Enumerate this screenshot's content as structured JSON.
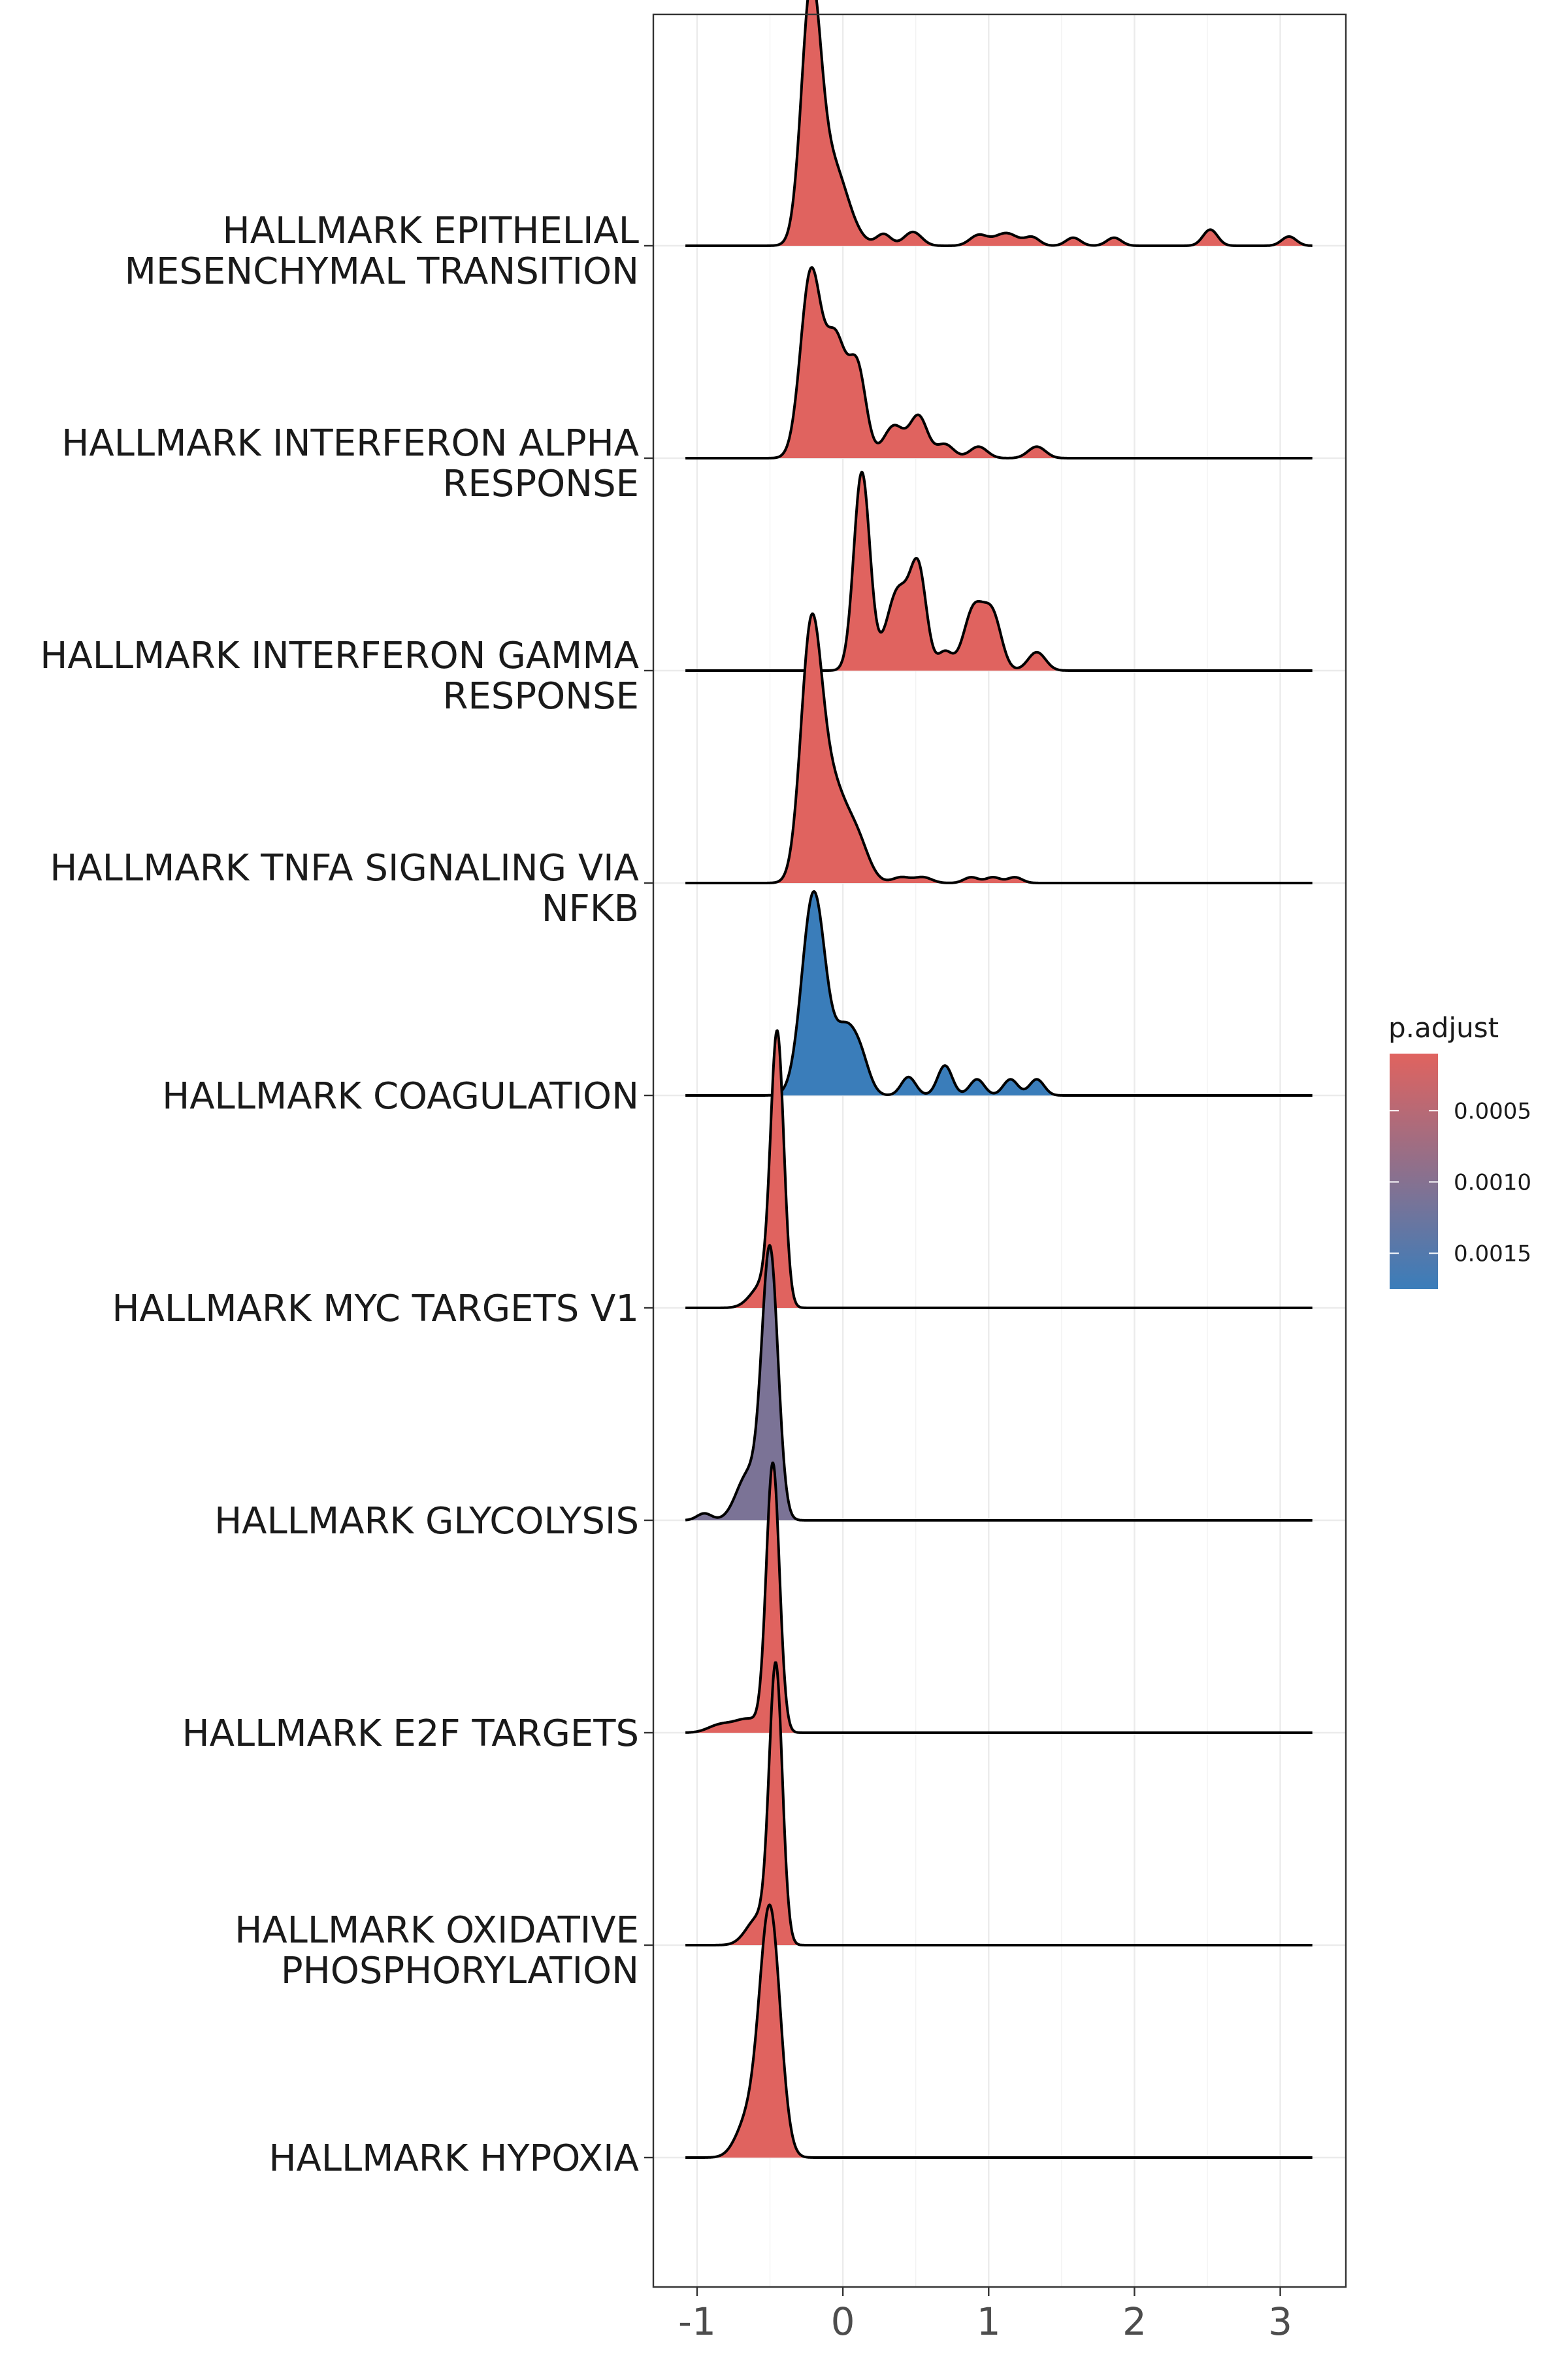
{
  "chart_data": {
    "type": "ridgeline",
    "xlim": [
      -1.3,
      3.45
    ],
    "x_ticks": [
      -1,
      0,
      1,
      2,
      3
    ],
    "x_tick_labels": [
      "-1",
      "0",
      "1",
      "2",
      "3"
    ],
    "grid": true,
    "legend": {
      "title": "p.adjust",
      "position": "right",
      "color_low": "#E0635F",
      "color_high": "#3A7DBA",
      "domain": [
        0.0001,
        0.00175
      ],
      "ticks": [
        0.0005,
        0.001,
        0.0015
      ],
      "tick_labels": [
        "0.0005",
        "0.0010",
        "0.0015"
      ]
    },
    "series": [
      {
        "name": "HALLMARK EPITHELIAL MESENCHYMAL TRANSITION",
        "label_lines": [
          "HALLMARK EPITHELIAL",
          "MESENCHYMAL TRANSITION"
        ],
        "p_adjust": 0.0001,
        "x_range": [
          -1.08,
          3.22
        ],
        "peaks": [
          {
            "x": -0.22,
            "h": 1.0,
            "w": 0.065
          },
          {
            "x": -0.08,
            "h": 0.36,
            "w": 0.11
          },
          {
            "x": 0.28,
            "h": 0.05,
            "w": 0.05
          },
          {
            "x": 0.48,
            "h": 0.06,
            "w": 0.06
          },
          {
            "x": 0.93,
            "h": 0.045,
            "w": 0.06
          },
          {
            "x": 1.12,
            "h": 0.055,
            "w": 0.08
          },
          {
            "x": 1.3,
            "h": 0.035,
            "w": 0.05
          },
          {
            "x": 1.58,
            "h": 0.035,
            "w": 0.05
          },
          {
            "x": 1.86,
            "h": 0.035,
            "w": 0.05
          },
          {
            "x": 2.52,
            "h": 0.07,
            "w": 0.05
          },
          {
            "x": 3.06,
            "h": 0.04,
            "w": 0.05
          }
        ]
      },
      {
        "name": "HALLMARK INTERFERON ALPHA RESPONSE",
        "label_lines": [
          "HALLMARK INTERFERON ALPHA",
          "RESPONSE"
        ],
        "p_adjust": 0.0001,
        "x_range": [
          -1.08,
          3.22
        ],
        "peaks": [
          {
            "x": -0.22,
            "h": 0.8,
            "w": 0.07
          },
          {
            "x": -0.05,
            "h": 0.5,
            "w": 0.07
          },
          {
            "x": 0.1,
            "h": 0.38,
            "w": 0.06
          },
          {
            "x": 0.35,
            "h": 0.14,
            "w": 0.07
          },
          {
            "x": 0.52,
            "h": 0.18,
            "w": 0.06
          },
          {
            "x": 0.7,
            "h": 0.06,
            "w": 0.06
          },
          {
            "x": 0.93,
            "h": 0.05,
            "w": 0.06
          },
          {
            "x": 1.33,
            "h": 0.05,
            "w": 0.06
          }
        ]
      },
      {
        "name": "HALLMARK INTERFERON GAMMA RESPONSE",
        "label_lines": [
          "HALLMARK INTERFERON GAMMA",
          "RESPONSE"
        ],
        "p_adjust": 0.0001,
        "x_range": [
          -1.08,
          3.22
        ],
        "peaks": [
          {
            "x": 0.13,
            "h": 0.86,
            "w": 0.055
          },
          {
            "x": 0.38,
            "h": 0.35,
            "w": 0.08
          },
          {
            "x": 0.52,
            "h": 0.4,
            "w": 0.055
          },
          {
            "x": 0.7,
            "h": 0.08,
            "w": 0.05
          },
          {
            "x": 0.9,
            "h": 0.27,
            "w": 0.07
          },
          {
            "x": 1.03,
            "h": 0.22,
            "w": 0.06
          },
          {
            "x": 1.33,
            "h": 0.08,
            "w": 0.06
          }
        ]
      },
      {
        "name": "HALLMARK TNFA SIGNALING VIA NFKB",
        "label_lines": [
          "HALLMARK TNFA SIGNALING VIA",
          "NFKB"
        ],
        "p_adjust": 0.0001,
        "x_range": [
          -1.08,
          3.22
        ],
        "peaks": [
          {
            "x": -0.22,
            "h": 1.0,
            "w": 0.07
          },
          {
            "x": -0.08,
            "h": 0.42,
            "w": 0.1
          },
          {
            "x": 0.1,
            "h": 0.16,
            "w": 0.08
          },
          {
            "x": 0.4,
            "h": 0.025,
            "w": 0.06
          },
          {
            "x": 0.55,
            "h": 0.025,
            "w": 0.06
          },
          {
            "x": 0.88,
            "h": 0.025,
            "w": 0.05
          },
          {
            "x": 1.03,
            "h": 0.025,
            "w": 0.05
          },
          {
            "x": 1.18,
            "h": 0.025,
            "w": 0.05
          }
        ]
      },
      {
        "name": "HALLMARK COAGULATION",
        "label_lines": [
          "HALLMARK COAGULATION"
        ],
        "p_adjust": 0.00175,
        "x_range": [
          -1.08,
          3.22
        ],
        "peaks": [
          {
            "x": -0.2,
            "h": 0.88,
            "w": 0.08
          },
          {
            "x": 0.02,
            "h": 0.28,
            "w": 0.08
          },
          {
            "x": 0.13,
            "h": 0.1,
            "w": 0.06
          },
          {
            "x": 0.45,
            "h": 0.08,
            "w": 0.05
          },
          {
            "x": 0.7,
            "h": 0.13,
            "w": 0.05
          },
          {
            "x": 0.92,
            "h": 0.07,
            "w": 0.05
          },
          {
            "x": 1.15,
            "h": 0.07,
            "w": 0.05
          },
          {
            "x": 1.33,
            "h": 0.07,
            "w": 0.05
          }
        ]
      },
      {
        "name": "HALLMARK MYC TARGETS V1",
        "label_lines": [
          "HALLMARK MYC TARGETS V1"
        ],
        "p_adjust": 0.0001,
        "x_range": [
          -1.08,
          3.22
        ],
        "peaks": [
          {
            "x": -0.45,
            "h": 1.16,
            "w": 0.045
          },
          {
            "x": -0.55,
            "h": 0.1,
            "w": 0.08
          }
        ]
      },
      {
        "name": "HALLMARK GLYCOLYSIS",
        "label_lines": [
          "HALLMARK GLYCOLYSIS"
        ],
        "p_adjust": 0.0011,
        "x_range": [
          -1.08,
          3.22
        ],
        "peaks": [
          {
            "x": -0.5,
            "h": 1.16,
            "w": 0.055
          },
          {
            "x": -0.65,
            "h": 0.2,
            "w": 0.08
          },
          {
            "x": -0.95,
            "h": 0.03,
            "w": 0.05
          }
        ]
      },
      {
        "name": "HALLMARK E2F TARGETS",
        "label_lines": [
          "HALLMARK E2F TARGETS"
        ],
        "p_adjust": 0.0001,
        "x_range": [
          -1.08,
          3.22
        ],
        "peaks": [
          {
            "x": -0.48,
            "h": 1.16,
            "w": 0.045
          },
          {
            "x": -0.65,
            "h": 0.06,
            "w": 0.1
          },
          {
            "x": -0.85,
            "h": 0.03,
            "w": 0.08
          }
        ]
      },
      {
        "name": "HALLMARK OXIDATIVE PHOSPHORYLATION",
        "label_lines": [
          "HALLMARK OXIDATIVE",
          "PHOSPHORYLATION"
        ],
        "p_adjust": 0.0001,
        "x_range": [
          -1.08,
          3.22
        ],
        "peaks": [
          {
            "x": -0.46,
            "h": 1.19,
            "w": 0.045
          },
          {
            "x": -0.58,
            "h": 0.12,
            "w": 0.08
          }
        ]
      },
      {
        "name": "HALLMARK HYPOXIA",
        "label_lines": [
          "HALLMARK HYPOXIA"
        ],
        "p_adjust": 0.0001,
        "x_range": [
          -1.08,
          3.22
        ],
        "peaks": [
          {
            "x": -0.5,
            "h": 1.07,
            "w": 0.07
          },
          {
            "x": -0.65,
            "h": 0.16,
            "w": 0.08
          }
        ]
      }
    ]
  }
}
